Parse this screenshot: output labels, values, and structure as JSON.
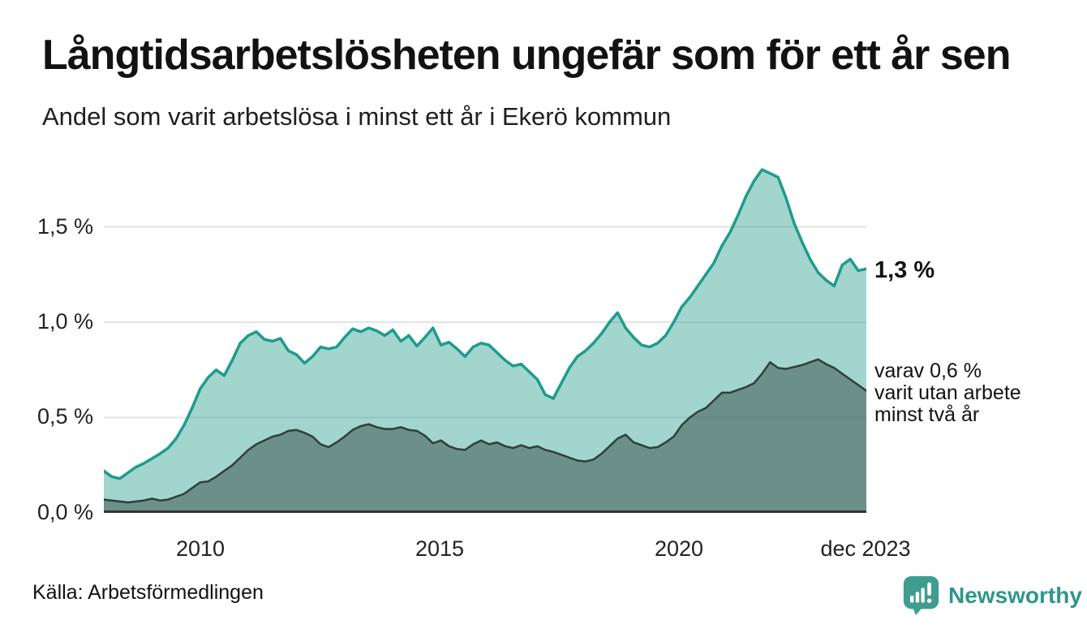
{
  "header": {
    "title": "Långtidsarbetslösheten ungefär som för ett år sen",
    "subtitle": "Andel som varit arbetslösa i minst ett år i Ekerö kommun"
  },
  "chart": {
    "y_tick_labels": [
      "1,5 %",
      "1,0 %",
      "0,5 %",
      "0,0 %"
    ],
    "x_tick_labels": [
      "2010",
      "2015",
      "2020",
      "dec 2023"
    ],
    "end_value_label": "1,3 %",
    "secondary_annotation_lines": [
      "varav 0,6 %",
      "varit utan arbete",
      "minst två år"
    ]
  },
  "footer": {
    "source": "Källa: Arbetsförmedlingen",
    "brand": "Newsworthy"
  },
  "colors": {
    "accent_teal_line": "#1d9c8c",
    "light_area_fill": "rgba(33,154,138,0.42)",
    "dark_series_line": "#2d403b",
    "dark_area_fill": "rgba(44,66,60,0.47)",
    "gridline": "#e3e3e3",
    "axis_line": "#333333",
    "brand_teal": "#2E968B"
  },
  "chart_data": {
    "type": "area",
    "title": "Långtidsarbetslösheten ungefär som för ett år sen",
    "subtitle": "Andel som varit arbetslösa i minst ett år i Ekerö kommun",
    "unit": "%",
    "x_start_year": 2008,
    "x_end_label": "dec 2023",
    "points_per_year": 6,
    "ylim": [
      0,
      1.86
    ],
    "y_ticks": [
      0,
      0.5,
      1.0,
      1.5
    ],
    "x_ticks": [
      "2010",
      "2015",
      "2020",
      "dec 2023"
    ],
    "grid": true,
    "legend_position": "right-annotations",
    "series": [
      {
        "name": "Andel som varit arbetslösa i minst ett år",
        "latest_value_label": "1,3 %",
        "latest_value": 1.3,
        "stroke": "#1d9c8c",
        "stroke_width": 3.5,
        "fill": "rgba(33,154,138,0.42)",
        "values": [
          0.22,
          0.19,
          0.18,
          0.21,
          0.24,
          0.26,
          0.285,
          0.31,
          0.34,
          0.39,
          0.46,
          0.55,
          0.65,
          0.71,
          0.75,
          0.72,
          0.8,
          0.89,
          0.93,
          0.95,
          0.91,
          0.9,
          0.915,
          0.85,
          0.83,
          0.785,
          0.82,
          0.87,
          0.86,
          0.87,
          0.92,
          0.965,
          0.95,
          0.97,
          0.955,
          0.93,
          0.96,
          0.9,
          0.93,
          0.875,
          0.92,
          0.97,
          0.88,
          0.895,
          0.86,
          0.82,
          0.87,
          0.89,
          0.88,
          0.84,
          0.8,
          0.77,
          0.78,
          0.74,
          0.7,
          0.62,
          0.6,
          0.68,
          0.76,
          0.82,
          0.85,
          0.89,
          0.94,
          1.0,
          1.05,
          0.97,
          0.92,
          0.88,
          0.87,
          0.89,
          0.93,
          1.0,
          1.08,
          1.13,
          1.19,
          1.25,
          1.31,
          1.4,
          1.47,
          1.56,
          1.66,
          1.74,
          1.8,
          1.78,
          1.76,
          1.65,
          1.52,
          1.42,
          1.33,
          1.26,
          1.22,
          1.19,
          1.3,
          1.33,
          1.27,
          1.28
        ]
      },
      {
        "name": "varav utan arbete minst två år",
        "latest_value_label": "varav 0,6 % varit utan arbete minst två år",
        "latest_value": 0.6,
        "stroke": "#2d403b",
        "stroke_width": 2.5,
        "fill": "rgba(44,66,60,0.47)",
        "values": [
          0.07,
          0.065,
          0.06,
          0.055,
          0.06,
          0.065,
          0.075,
          0.065,
          0.07,
          0.085,
          0.1,
          0.13,
          0.16,
          0.165,
          0.19,
          0.22,
          0.25,
          0.29,
          0.33,
          0.36,
          0.38,
          0.4,
          0.41,
          0.43,
          0.435,
          0.42,
          0.4,
          0.36,
          0.345,
          0.37,
          0.4,
          0.435,
          0.455,
          0.465,
          0.45,
          0.44,
          0.44,
          0.45,
          0.435,
          0.43,
          0.405,
          0.365,
          0.38,
          0.35,
          0.335,
          0.33,
          0.36,
          0.38,
          0.36,
          0.37,
          0.35,
          0.34,
          0.355,
          0.34,
          0.35,
          0.33,
          0.32,
          0.305,
          0.29,
          0.275,
          0.27,
          0.28,
          0.31,
          0.35,
          0.39,
          0.41,
          0.37,
          0.355,
          0.34,
          0.345,
          0.37,
          0.4,
          0.46,
          0.5,
          0.53,
          0.55,
          0.59,
          0.63,
          0.63,
          0.645,
          0.66,
          0.68,
          0.73,
          0.79,
          0.76,
          0.755,
          0.765,
          0.775,
          0.79,
          0.805,
          0.78,
          0.76,
          0.73,
          0.7,
          0.67,
          0.64
        ]
      }
    ]
  }
}
